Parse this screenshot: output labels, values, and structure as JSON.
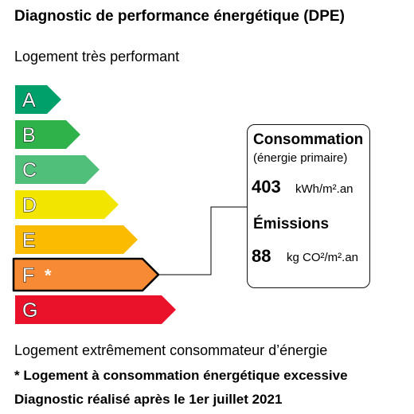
{
  "title": "Diagnostic de performance énergétique (DPE)",
  "top_label": "Logement très performant",
  "bottom_label": "Logement extrêmement consommateur d’énergie",
  "footnote": "* Logement à consommation énergétique excessive",
  "diagnostic_date": "Diagnostic réalisé après le 1er juillet 2021",
  "classes": [
    {
      "letter": "A",
      "color": "#00a06b",
      "marker": ""
    },
    {
      "letter": "B",
      "color": "#2fb24a",
      "marker": ""
    },
    {
      "letter": "C",
      "color": "#4fbf79",
      "marker": ""
    },
    {
      "letter": "D",
      "color": "#f2e600",
      "marker": ""
    },
    {
      "letter": "E",
      "color": "#fbbb00",
      "marker": ""
    },
    {
      "letter": "F",
      "color": "#f68a35",
      "marker": "*"
    },
    {
      "letter": "G",
      "color": "#e9122a",
      "marker": ""
    }
  ],
  "current_class": "F",
  "consumption": {
    "title": "Consommation",
    "subtitle": "(énergie primaire)",
    "value": "403",
    "unit": "kWh/m².an"
  },
  "emissions": {
    "title": "Émissions",
    "value": "88",
    "unit": "kg CO²/m².an"
  }
}
